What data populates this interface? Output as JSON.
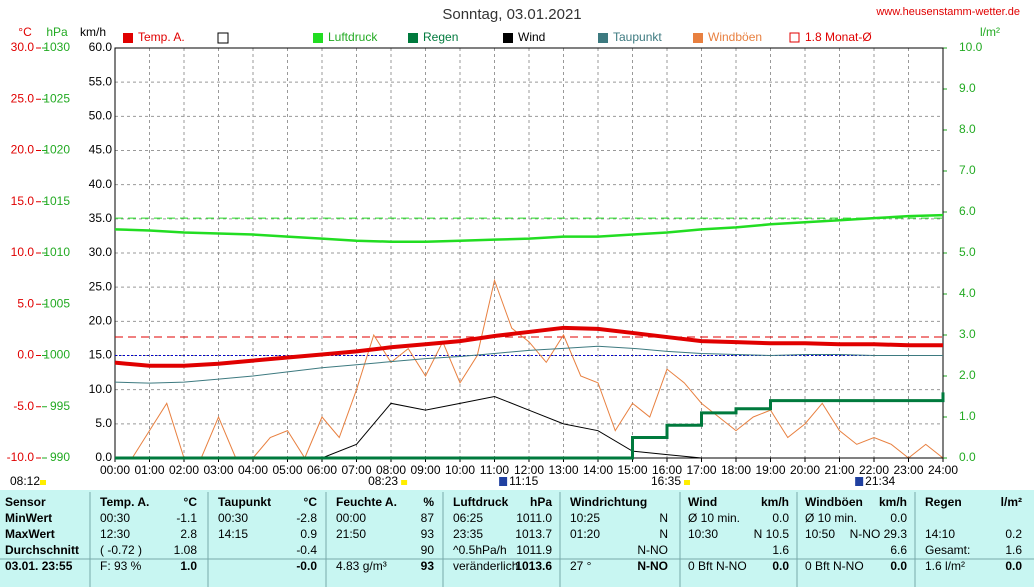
{
  "chart_data": {
    "type": "line",
    "title": "Sonntag, 03.01.2021",
    "source": "www.heusenstamm-wetter.de",
    "axis_labels": {
      "temp": "°C",
      "pressure": "hPa",
      "y": "km/h",
      "y2": "l/m²"
    },
    "x": [
      0,
      1,
      2,
      3,
      4,
      5,
      6,
      7,
      8,
      9,
      10,
      11,
      12,
      13,
      14,
      15,
      16,
      17,
      18,
      19,
      20,
      21,
      22,
      23,
      24
    ],
    "xlim": [
      0,
      24
    ],
    "xticks": [
      {
        "value": 0,
        "label": "00:00"
      },
      {
        "value": 1,
        "label": "01:00"
      },
      {
        "value": 2,
        "label": "02:00"
      },
      {
        "value": 3,
        "label": "03:00"
      },
      {
        "value": 4,
        "label": "04:00"
      },
      {
        "value": 5,
        "label": "05:00"
      },
      {
        "value": 6,
        "label": "06:00"
      },
      {
        "value": 7,
        "label": "07:00"
      },
      {
        "value": 8,
        "label": "08:00"
      },
      {
        "value": 9,
        "label": "09:00"
      },
      {
        "value": 10,
        "label": "10:00"
      },
      {
        "value": 11,
        "label": "11:00"
      },
      {
        "value": 12,
        "label": "12:00"
      },
      {
        "value": 13,
        "label": "13:00"
      },
      {
        "value": 14,
        "label": "14:00"
      },
      {
        "value": 15,
        "label": "15:00"
      },
      {
        "value": 16,
        "label": "16:00"
      },
      {
        "value": 17,
        "label": "17:00"
      },
      {
        "value": 18,
        "label": "18:00"
      },
      {
        "value": 19,
        "label": "19:00"
      },
      {
        "value": 20,
        "label": "20:00"
      },
      {
        "value": 21,
        "label": "21:00"
      },
      {
        "value": 22,
        "label": "22:00"
      },
      {
        "value": 23,
        "label": "23:00"
      },
      {
        "value": 24,
        "label": "24:00"
      }
    ],
    "ylim": [
      0,
      60
    ],
    "yticks": [
      {
        "value": 0,
        "label": "0.0"
      },
      {
        "value": 5,
        "label": "5.0"
      },
      {
        "value": 10,
        "label": "10.0"
      },
      {
        "value": 15,
        "label": "15.0"
      },
      {
        "value": 20,
        "label": "20.0"
      },
      {
        "value": 25,
        "label": "25.0"
      },
      {
        "value": 30,
        "label": "30.0"
      },
      {
        "value": 35,
        "label": "35.0"
      },
      {
        "value": 40,
        "label": "40.0"
      },
      {
        "value": 45,
        "label": "45.0"
      },
      {
        "value": 50,
        "label": "50.0"
      },
      {
        "value": 55,
        "label": "55.0"
      },
      {
        "value": 60,
        "label": "60.0"
      }
    ],
    "temp_lim": [
      -10,
      30
    ],
    "temp_ticks": [
      {
        "value": -10,
        "label": "-10.0"
      },
      {
        "value": -5,
        "label": "-5.0"
      },
      {
        "value": 0,
        "label": "0.0"
      },
      {
        "value": 5,
        "label": "5.0"
      },
      {
        "value": 10,
        "label": "10.0"
      },
      {
        "value": 15,
        "label": "15.0"
      },
      {
        "value": 20,
        "label": "20.0"
      },
      {
        "value": 25,
        "label": "25.0"
      },
      {
        "value": 30,
        "label": "30.0"
      }
    ],
    "pressure_lim": [
      990,
      1030
    ],
    "pressure_ticks": [
      990,
      995,
      1000,
      1005,
      1010,
      1015,
      1020,
      1025,
      1030
    ],
    "y2lim": [
      0,
      10
    ],
    "y2ticks": [
      {
        "value": 0,
        "label": "0.0"
      },
      {
        "value": 1,
        "label": "1.0"
      },
      {
        "value": 2,
        "label": "2.0"
      },
      {
        "value": 3,
        "label": "3.0"
      },
      {
        "value": 4,
        "label": "4.0"
      },
      {
        "value": 5,
        "label": "5.0"
      },
      {
        "value": 6,
        "label": "6.0"
      },
      {
        "value": 7,
        "label": "7.0"
      },
      {
        "value": 8,
        "label": "8.0"
      },
      {
        "value": 9,
        "label": "9.0"
      },
      {
        "value": 10,
        "label": "10.0"
      }
    ],
    "grid": true,
    "series": [
      {
        "name": "Windböen",
        "color": "#e88040",
        "axis": "y",
        "width": 1,
        "x": [
          0,
          0.5,
          1,
          1.5,
          2,
          2.5,
          3,
          3.5,
          4,
          4.5,
          5,
          5.5,
          6,
          6.5,
          7,
          7.5,
          8,
          8.5,
          9,
          9.5,
          10,
          10.5,
          11,
          11.5,
          12,
          12.5,
          13,
          13.5,
          14,
          14.5,
          15,
          15.5,
          16,
          16.5,
          17,
          17.5,
          18,
          18.5,
          19,
          19.5,
          20,
          20.5,
          21,
          21.5,
          22,
          22.5,
          23,
          23.5,
          24
        ],
        "values": [
          0,
          0,
          4,
          8,
          0,
          0,
          6,
          0,
          0,
          3,
          4,
          0,
          6,
          3,
          10,
          18,
          14,
          16,
          12,
          17,
          11,
          15,
          26,
          19,
          17,
          14,
          18,
          12,
          11,
          4,
          8,
          6,
          13,
          11,
          8,
          6,
          4,
          6,
          7,
          3,
          5,
          8,
          4,
          2,
          3,
          2,
          0,
          2,
          0
        ]
      },
      {
        "name": "Wind",
        "color": "#000000",
        "axis": "y",
        "width": 1,
        "values": [
          0,
          0,
          0,
          0,
          0,
          0,
          0,
          2,
          8,
          7,
          8,
          9,
          7,
          5,
          4,
          1,
          0.5,
          0,
          0,
          0,
          0,
          0,
          0,
          0,
          0
        ]
      },
      {
        "name": "Luftdruck",
        "color": "#22dd22",
        "axis": "pressure",
        "width": 2.5,
        "values": [
          1012.3,
          1012.2,
          1012.0,
          1011.9,
          1011.8,
          1011.6,
          1011.4,
          1011.2,
          1011.1,
          1011.1,
          1011.2,
          1011.3,
          1011.4,
          1011.6,
          1011.6,
          1011.8,
          1012.0,
          1012.3,
          1012.5,
          1012.8,
          1013.0,
          1013.2,
          1013.4,
          1013.6,
          1013.7
        ]
      },
      {
        "name": "Taupunkt",
        "color": "#3d7a80",
        "axis": "temp",
        "width": 1,
        "values": [
          -2.6,
          -2.7,
          -2.6,
          -2.3,
          -2.0,
          -1.6,
          -1.2,
          -0.9,
          -0.6,
          -0.3,
          -0.1,
          0.2,
          0.5,
          0.7,
          0.9,
          0.7,
          0.4,
          0.2,
          0.1,
          0.0,
          0.1,
          0.1,
          0.0,
          0.0,
          0.0
        ]
      },
      {
        "name": "Regen",
        "color": "#007a3d",
        "axis": "y2",
        "width": 3,
        "step": true,
        "values": [
          0,
          0,
          0,
          0,
          0,
          0,
          0,
          0,
          0,
          0,
          0,
          0,
          0,
          0,
          0,
          0.5,
          0.8,
          1.1,
          1.2,
          1.4,
          1.4,
          1.4,
          1.4,
          1.4,
          1.6
        ]
      },
      {
        "name": "Temp. A.",
        "color": "#e00000",
        "axis": "temp",
        "width": 4,
        "values": [
          -0.7,
          -1.0,
          -1.0,
          -0.8,
          -0.5,
          -0.2,
          0.1,
          0.4,
          0.8,
          1.1,
          1.4,
          1.9,
          2.3,
          2.7,
          2.6,
          2.2,
          1.8,
          1.4,
          1.3,
          1.2,
          1.2,
          1.1,
          1.1,
          1.0,
          1.0
        ]
      }
    ],
    "legend_order": [
      5,
      2,
      4,
      1,
      3,
      0
    ],
    "reference_lines": [
      {
        "name": "1.8 Monat-Ø",
        "value": 1.8,
        "axis": "temp",
        "color": "#e00000"
      },
      {
        "value": 1013.4,
        "axis": "pressure",
        "color": "#22dd22"
      }
    ],
    "annotations": [
      {
        "label": "08:12",
        "kind": "sun"
      },
      {
        "x": 8.38,
        "label": "08:23",
        "kind": "sun"
      },
      {
        "x": 11.25,
        "label": "11:15",
        "kind": "moon"
      },
      {
        "x": 16.58,
        "label": "16:35",
        "kind": "sun"
      },
      {
        "x": 21.57,
        "label": "21:34",
        "kind": "moon"
      }
    ]
  },
  "table": {
    "rows": [
      [
        "Sensor",
        "Temp. A.",
        "°C",
        "Taupunkt",
        "°C",
        "Feuchte A.",
        "%",
        "Luftdruck",
        "hPa",
        "Windrichtung",
        null,
        "Wind",
        "km/h",
        "Windböen",
        "km/h",
        "Regen",
        "l/m²"
      ],
      [
        "MinWert",
        "00:30",
        "-1.1",
        "00:30",
        "-2.8",
        "00:00",
        "87",
        "06:25",
        "1011.0",
        "10:25",
        "N",
        "Ø 10 min.",
        "0.0",
        "Ø 10 min.",
        "0.0",
        null,
        null
      ],
      [
        "MaxWert",
        "12:30",
        "2.8",
        "14:15",
        "0.9",
        "21:50",
        "93",
        "23:35",
        "1013.7",
        "01:20",
        "N",
        "10:30",
        "N 10.5",
        "10:50",
        "N-NO 29.3",
        "14:10",
        "0.2"
      ],
      [
        "Durchschnitt",
        "( -0.72 )",
        "1.08",
        null,
        "-0.4",
        null,
        "90",
        "^0.5hPa/h",
        "1011.9",
        null,
        "N-NO",
        null,
        "1.6",
        null,
        "6.6",
        "Gesamt:",
        "1.6"
      ],
      [
        "03.01. 23:55",
        "F: 93 %",
        "1.0",
        null,
        "-0.0",
        "4.83 g/m³",
        "93",
        "veränderlich",
        "1013.6",
        "27 °",
        "N-NO",
        "0 Bft N-NO",
        "0.0",
        "0 Bft N-NO",
        "0.0",
        "1.6 l/m²",
        "0.0"
      ]
    ]
  }
}
